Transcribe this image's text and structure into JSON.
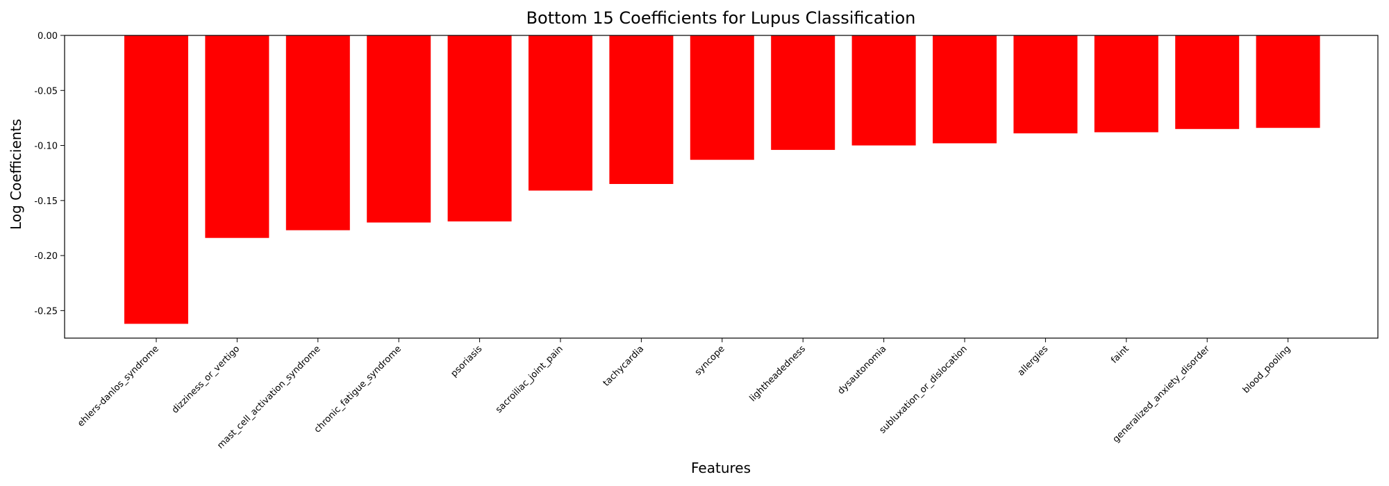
{
  "chart_data": {
    "type": "bar",
    "title": "Bottom 15 Coefficients for Lupus Classification",
    "xlabel": "Features",
    "ylabel": "Log Coefficients",
    "categories": [
      "ehlers-danlos_syndrome",
      "dizziness_or_vertigo",
      "mast_cell_activation_syndrome",
      "chronic_fatigue_syndrome",
      "psoriasis",
      "sacroiliac_joint_pain",
      "tachycardia",
      "syncope",
      "lightheadedness",
      "dysautonomia",
      "subluxation_or_dislocation",
      "allergies",
      "faint",
      "generalized_anxiety_disorder",
      "blood_pooling"
    ],
    "values": [
      -0.262,
      -0.184,
      -0.177,
      -0.17,
      -0.169,
      -0.141,
      -0.135,
      -0.113,
      -0.104,
      -0.1,
      -0.098,
      -0.089,
      -0.088,
      -0.085,
      -0.084
    ],
    "ylim": [
      -0.275,
      0.0
    ],
    "yticks": [
      "0.00",
      "-0.05",
      "-0.10",
      "-0.15",
      "-0.20",
      "-0.25"
    ],
    "ytick_values": [
      0.0,
      -0.05,
      -0.1,
      -0.15,
      -0.2,
      -0.25
    ],
    "bar_color": "#ff0000",
    "grid": false,
    "legend": "none"
  }
}
